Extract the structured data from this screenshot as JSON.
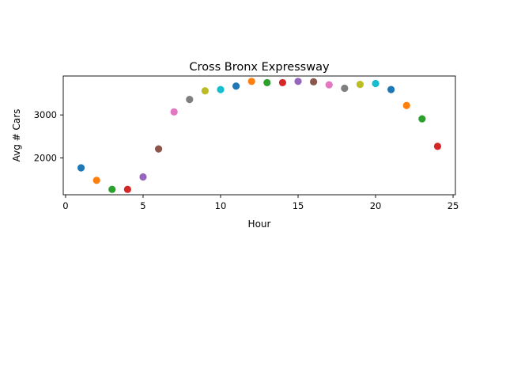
{
  "chart_data": {
    "type": "scatter",
    "title": "Cross Bronx Expressway",
    "xlabel": "Hour",
    "ylabel": "Avg # Cars",
    "x": [
      1,
      2,
      3,
      4,
      5,
      6,
      7,
      8,
      9,
      10,
      11,
      12,
      13,
      14,
      15,
      16,
      17,
      18,
      19,
      20,
      21,
      22,
      23,
      24
    ],
    "y": [
      1770,
      1480,
      1270,
      1270,
      1560,
      2210,
      3070,
      3360,
      3560,
      3590,
      3670,
      3780,
      3750,
      3750,
      3780,
      3770,
      3700,
      3620,
      3710,
      3730,
      3590,
      3220,
      2910,
      2270
    ],
    "point_colors": [
      "#1f77b4",
      "#ff7f0e",
      "#2ca02c",
      "#d62728",
      "#9467bd",
      "#8c564b",
      "#e377c2",
      "#7f7f7f",
      "#bcbd22",
      "#17becf",
      "#1f77b4",
      "#ff7f0e",
      "#2ca02c",
      "#d62728",
      "#9467bd",
      "#8c564b",
      "#e377c2",
      "#7f7f7f",
      "#bcbd22",
      "#17becf",
      "#1f77b4",
      "#ff7f0e",
      "#2ca02c",
      "#d62728"
    ],
    "xlim": [
      -0.15,
      25.15
    ],
    "ylim": [
      1145,
      3905
    ],
    "xticks": [
      0,
      5,
      10,
      15,
      20,
      25
    ],
    "yticks": [
      2000,
      3000
    ],
    "grid": false,
    "legend": "none"
  }
}
